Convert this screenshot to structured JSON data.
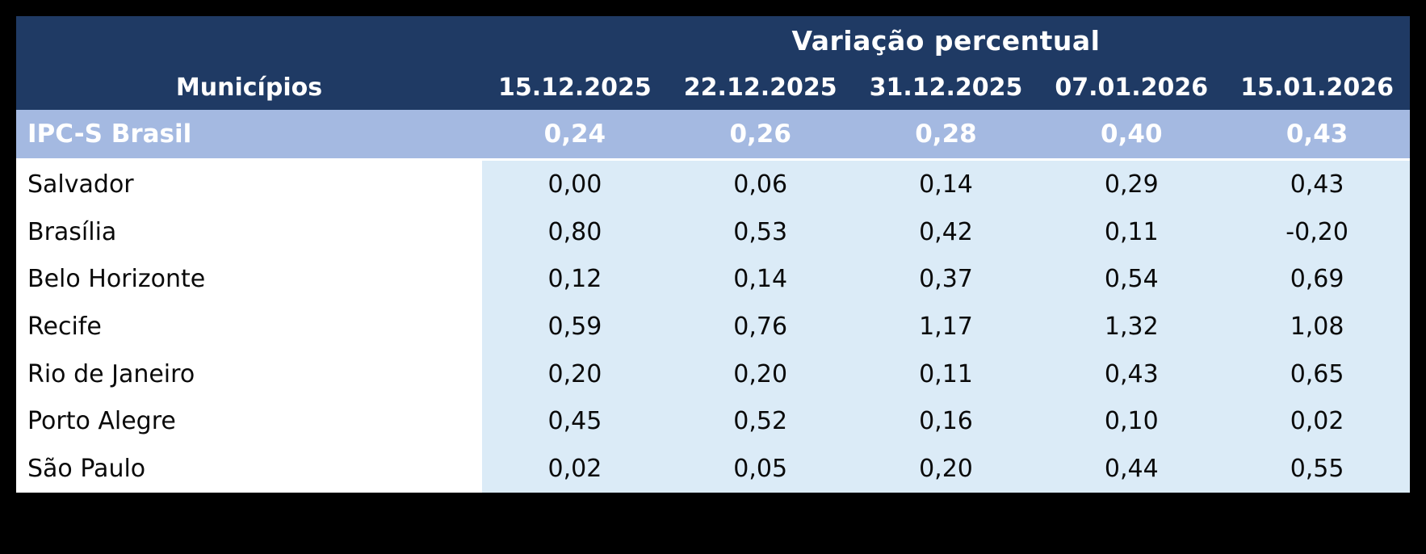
{
  "table": {
    "title": "Variação percentual",
    "municipios_header": "Municípios",
    "date_columns": [
      "15.12.2025",
      "22.12.2025",
      "31.12.2025",
      "07.01.2026",
      "15.01.2026"
    ],
    "summary_row": {
      "label": "IPC-S Brasil",
      "values": [
        "0,24",
        "0,26",
        "0,28",
        "0,40",
        "0,43"
      ]
    },
    "rows": [
      {
        "label": "Salvador",
        "values": [
          "0,00",
          "0,06",
          "0,14",
          "0,29",
          "0,43"
        ]
      },
      {
        "label": "Brasília",
        "values": [
          "0,80",
          "0,53",
          "0,42",
          "0,11",
          "-0,20"
        ]
      },
      {
        "label": "Belo Horizonte",
        "values": [
          "0,12",
          "0,14",
          "0,37",
          "0,54",
          "0,69"
        ]
      },
      {
        "label": "Recife",
        "values": [
          "0,59",
          "0,76",
          "1,17",
          "1,32",
          "1,08"
        ]
      },
      {
        "label": "Rio de Janeiro",
        "values": [
          "0,20",
          "0,20",
          "0,11",
          "0,43",
          "0,65"
        ]
      },
      {
        "label": "Porto Alegre",
        "values": [
          "0,45",
          "0,52",
          "0,16",
          "0,10",
          "0,02"
        ]
      },
      {
        "label": "São Paulo",
        "values": [
          "0,02",
          "0,05",
          "0,20",
          "0,44",
          "0,55"
        ]
      }
    ],
    "colors": {
      "header_bg": "#1F3A64",
      "summary_bg": "#A4B9E1",
      "data_cell_bg": "#DBEBF7",
      "label_cell_bg": "#FFFFFF",
      "canvas_bg": "#000000",
      "header_text": "#FFFFFF",
      "body_text": "#0A0A0A"
    }
  },
  "chart_data": {
    "type": "table",
    "title": "Variação percentual",
    "row_header": "Municípios",
    "columns": [
      "15.12.2025",
      "22.12.2025",
      "31.12.2025",
      "07.01.2026",
      "15.01.2026"
    ],
    "rows": [
      {
        "name": "IPC-S Brasil",
        "highlight": true,
        "values": [
          0.24,
          0.26,
          0.28,
          0.4,
          0.43
        ]
      },
      {
        "name": "Salvador",
        "highlight": false,
        "values": [
          0.0,
          0.06,
          0.14,
          0.29,
          0.43
        ]
      },
      {
        "name": "Brasília",
        "highlight": false,
        "values": [
          0.8,
          0.53,
          0.42,
          0.11,
          -0.2
        ]
      },
      {
        "name": "Belo Horizonte",
        "highlight": false,
        "values": [
          0.12,
          0.14,
          0.37,
          0.54,
          0.69
        ]
      },
      {
        "name": "Recife",
        "highlight": false,
        "values": [
          0.59,
          0.76,
          1.17,
          1.32,
          1.08
        ]
      },
      {
        "name": "Rio de Janeiro",
        "highlight": false,
        "values": [
          0.2,
          0.2,
          0.11,
          0.43,
          0.65
        ]
      },
      {
        "name": "Porto Alegre",
        "highlight": false,
        "values": [
          0.45,
          0.52,
          0.16,
          0.1,
          0.02
        ]
      },
      {
        "name": "São Paulo",
        "highlight": false,
        "values": [
          0.02,
          0.05,
          0.2,
          0.44,
          0.55
        ]
      }
    ],
    "decimal_separator": ",",
    "notes": "IPC-S weekly percentage variation table; summary row highlighted in periwinkle, city value cells in pale blue"
  }
}
